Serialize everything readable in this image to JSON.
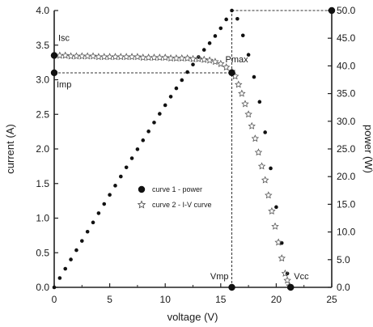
{
  "chart_data": {
    "type": "scatter",
    "xlabel": "voltage (V)",
    "ylabel_left": "current (A)",
    "ylabel_right": "power (W)",
    "xlim": [
      0,
      25
    ],
    "ylim_left": [
      0,
      4.0
    ],
    "ylim_right": [
      0,
      50.0
    ],
    "x_ticks": [
      "0",
      "5",
      "10",
      "15",
      "20",
      "25"
    ],
    "y_left_ticks": [
      "0.0",
      "0.5",
      "1.0",
      "1.5",
      "2.0",
      "2.5",
      "3.0",
      "3.5",
      "4.0"
    ],
    "y_right_ticks": [
      "0.0",
      "5.0",
      "10.0",
      "15.0",
      "20.0",
      "25.0",
      "30.0",
      "35.0",
      "40.0",
      "45.0",
      "50.0"
    ],
    "grid": false,
    "legend_position": "center-left",
    "series": [
      {
        "name": "curve 1 - power",
        "marker": "dot",
        "axis": "right",
        "x": [
          0,
          0.5,
          1.0,
          1.5,
          2.0,
          2.5,
          3.0,
          3.5,
          4.0,
          4.5,
          5.0,
          5.5,
          6.0,
          6.5,
          7.0,
          7.5,
          8.0,
          8.5,
          9.0,
          9.5,
          10.0,
          10.5,
          11.0,
          11.5,
          12.0,
          12.5,
          13.0,
          13.5,
          14.0,
          14.5,
          15.0,
          15.5,
          16.0,
          16.5,
          17.0,
          17.5,
          18.0,
          18.5,
          19.0,
          19.5,
          20.0,
          20.5,
          21.0
        ],
        "y": [
          0,
          1.68,
          3.36,
          5.03,
          6.71,
          8.38,
          10.05,
          11.72,
          13.39,
          15.05,
          16.71,
          18.37,
          20.02,
          21.67,
          23.31,
          24.94,
          26.56,
          28.17,
          29.77,
          31.35,
          32.9,
          34.44,
          35.95,
          37.43,
          38.88,
          40.25,
          41.6,
          42.9,
          44.1,
          45.4,
          46.8,
          48.4,
          50.0,
          48.5,
          45.5,
          42.0,
          38.0,
          33.5,
          28.0,
          21.5,
          14.5,
          8.0,
          2.5
        ]
      },
      {
        "name": "curve 2 - I-V curve",
        "marker": "star",
        "axis": "left",
        "x": [
          0.5,
          1.0,
          1.5,
          2.0,
          2.5,
          3.0,
          3.5,
          4.0,
          4.5,
          5.0,
          5.5,
          6.0,
          6.5,
          7.0,
          7.5,
          8.0,
          8.5,
          9.0,
          9.5,
          10.0,
          10.5,
          11.0,
          11.5,
          12.0,
          12.5,
          13.0,
          13.5,
          14.0,
          14.5,
          15.0,
          15.5,
          16.0,
          16.3,
          16.6,
          16.9,
          17.2,
          17.5,
          17.8,
          18.1,
          18.4,
          18.7,
          19.0,
          19.3,
          19.6,
          19.9,
          20.2,
          20.5,
          20.8,
          21.0,
          21.2
        ],
        "y": [
          3.35,
          3.35,
          3.34,
          3.34,
          3.34,
          3.34,
          3.34,
          3.33,
          3.33,
          3.33,
          3.33,
          3.33,
          3.33,
          3.33,
          3.33,
          3.32,
          3.32,
          3.32,
          3.32,
          3.32,
          3.31,
          3.31,
          3.31,
          3.31,
          3.3,
          3.3,
          3.29,
          3.28,
          3.26,
          3.23,
          3.18,
          3.12,
          3.05,
          2.93,
          2.8,
          2.65,
          2.5,
          2.33,
          2.15,
          1.95,
          1.75,
          1.55,
          1.33,
          1.1,
          0.88,
          0.65,
          0.42,
          0.2,
          0.1,
          0.02
        ]
      }
    ],
    "reference_lines": [
      {
        "label": "Imp",
        "axis": "left",
        "y": 3.1,
        "from_x": 0,
        "to_x": 16.0
      },
      {
        "label": "Pmax",
        "axis": "right",
        "y": 50.0,
        "from_x": 16.0,
        "to_x": 25.0
      },
      {
        "label": "Vmp",
        "x": 16.0,
        "from_left_y": 0,
        "to_left_y": 4.0
      }
    ],
    "key_points": [
      {
        "label": "Isc",
        "axis": "left",
        "x": 0,
        "y": 3.35
      },
      {
        "label": "Imp",
        "axis": "left",
        "x": 0,
        "y": 3.1
      },
      {
        "label": "Pmax",
        "axis": "left",
        "x": 16.0,
        "y": 3.1
      },
      {
        "label": "Vmp",
        "axis": "left",
        "x": 16.0,
        "y": 0
      },
      {
        "label": "Vcc",
        "axis": "left",
        "x": 21.3,
        "y": 0
      },
      {
        "label": "",
        "axis": "right",
        "x": 25.0,
        "y": 50.0
      }
    ],
    "annotations": [
      {
        "text": "Isc",
        "x": 0,
        "y": 3.35
      },
      {
        "text": "Imp",
        "x": 0,
        "y": 3.1
      },
      {
        "text": "Pmax",
        "x": 16.0,
        "y": 3.1
      },
      {
        "text": "Vmp",
        "x": 16.0,
        "y": 0
      },
      {
        "text": "Vcc",
        "x": 21.3,
        "y": 0
      }
    ]
  }
}
